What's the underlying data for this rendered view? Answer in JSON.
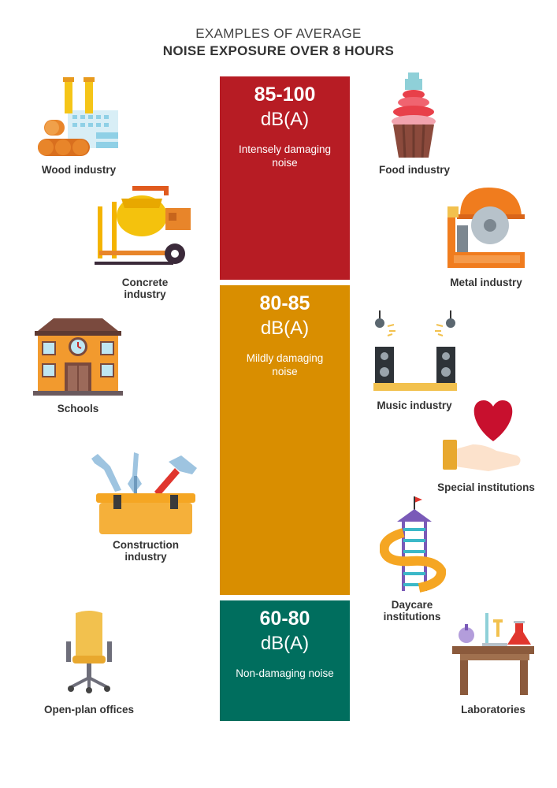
{
  "title": {
    "line1": "EXAMPLES OF AVERAGE",
    "line2": "NOISE EXPOSURE OVER 8 HOURS"
  },
  "bands": [
    {
      "range": "85-100",
      "unit": "dB(A)",
      "description": "Intensely damaging noise",
      "color": "#B71C24"
    },
    {
      "range": "80-85",
      "unit": "dB(A)",
      "description": "Mildly damaging noise",
      "color": "#D98E00"
    },
    {
      "range": "60-80",
      "unit": "dB(A)",
      "description": "Non-damaging noise",
      "color": "#006E5E"
    }
  ],
  "examples": {
    "wood": {
      "label": "Wood industry",
      "icon": "factory-logs-icon"
    },
    "concrete": {
      "label": "Concrete industry",
      "icon": "concrete-mixer-icon"
    },
    "schools": {
      "label": "Schools",
      "icon": "school-building-icon"
    },
    "construction": {
      "label": "Construction industry",
      "icon": "toolbox-icon"
    },
    "offices": {
      "label": "Open-plan offices",
      "icon": "office-chair-icon"
    },
    "food": {
      "label": "Food industry",
      "icon": "cupcake-icon"
    },
    "metal": {
      "label": "Metal industry",
      "icon": "circular-saw-icon"
    },
    "music": {
      "label": "Music industry",
      "icon": "stage-speakers-icon"
    },
    "special": {
      "label": "Special institutions",
      "icon": "heart-in-hand-icon"
    },
    "daycare": {
      "label": "Daycare institutions",
      "icon": "playground-slide-icon"
    },
    "labs": {
      "label": "Laboratories",
      "icon": "lab-bench-icon"
    }
  }
}
